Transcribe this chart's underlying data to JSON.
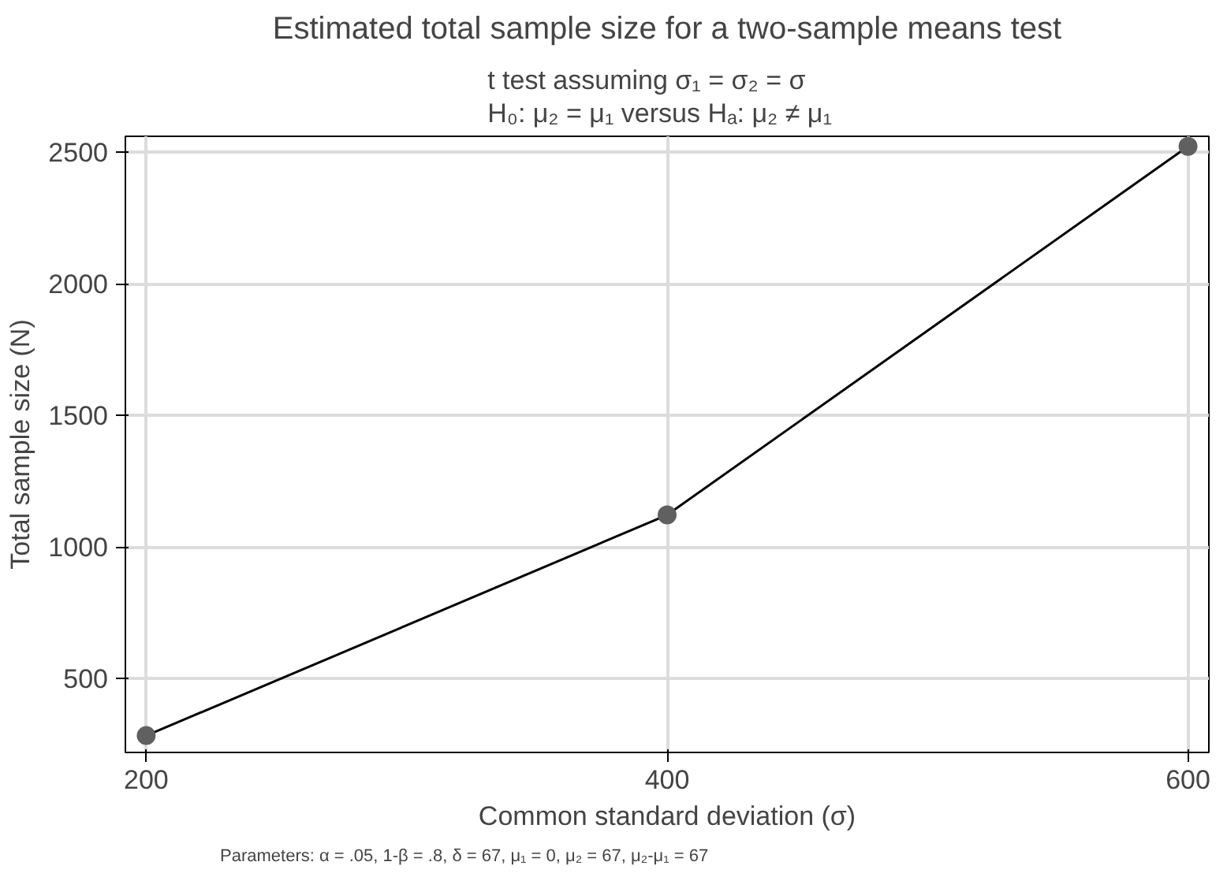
{
  "chart_data": {
    "type": "line",
    "title": "Estimated total sample size for a two-sample means test",
    "subtitle": "t test assuming σ₁ = σ₂ = σ\nH₀: μ₂ = μ₁  versus  Hₐ: μ₂ ≠ μ₁",
    "xlabel": "Common standard deviation (σ)",
    "ylabel": "Total sample size (N)",
    "x": [
      200,
      400,
      600
    ],
    "series": [
      {
        "color": "#000000",
        "values": [
          284,
          1122,
          2522
        ]
      }
    ],
    "marker": "circle",
    "grid": true,
    "xlim": [
      192,
      608
    ],
    "ylim": [
      220,
      2560
    ],
    "xticks": [
      200,
      400,
      600
    ],
    "yticks": [
      500,
      1000,
      1500,
      2000,
      2500
    ],
    "annotations": [
      "Parameters: α = .05, 1-β = .8, δ = 67, μ₁ = 0, μ₂ = 67, μ₂-μ₁ = 67"
    ]
  }
}
